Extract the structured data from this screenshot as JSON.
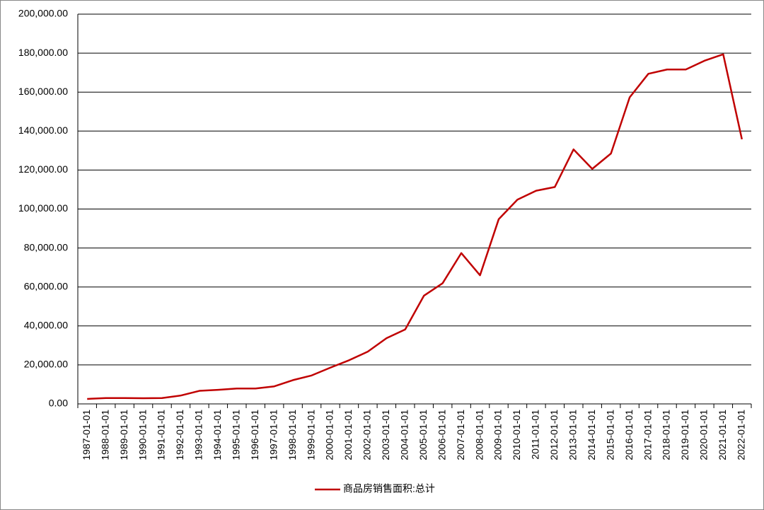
{
  "chart_data": {
    "type": "line",
    "categories": [
      "1987-01-01",
      "1988-01-01",
      "1989-01-01",
      "1990-01-01",
      "1991-01-01",
      "1992-01-01",
      "1993-01-01",
      "1994-01-01",
      "1995-01-01",
      "1996-01-01",
      "1997-01-01",
      "1998-01-01",
      "1999-01-01",
      "2000-01-01",
      "2001-01-01",
      "2002-01-01",
      "2003-01-01",
      "2004-01-01",
      "2005-01-01",
      "2006-01-01",
      "2007-01-01",
      "2008-01-01",
      "2009-01-01",
      "2010-01-01",
      "2011-01-01",
      "2012-01-01",
      "2013-01-01",
      "2014-01-01",
      "2015-01-01",
      "2016-01-01",
      "2017-01-01",
      "2018-01-01",
      "2019-01-01",
      "2020-01-01",
      "2021-01-01",
      "2022-01-01"
    ],
    "series": [
      {
        "name": "商品房销售面积:总计",
        "color": "#c00000",
        "values": [
          2545,
          3000,
          3000,
          2900,
          3000,
          4300,
          6700,
          7200,
          7900,
          7900,
          9000,
          12200,
          14600,
          18600,
          22400,
          26800,
          33700,
          38200,
          55500,
          61900,
          77400,
          66000,
          94800,
          104800,
          109400,
          111300,
          130600,
          120600,
          128500,
          157300,
          169400,
          171600,
          171600,
          176100,
          179400,
          135800
        ]
      }
    ],
    "ylim": [
      0,
      200000
    ],
    "yticks": [
      {
        "value": 0,
        "label": "0.00"
      },
      {
        "value": 20000,
        "label": "20,000.00"
      },
      {
        "value": 40000,
        "label": "40,000.00"
      },
      {
        "value": 60000,
        "label": "60,000.00"
      },
      {
        "value": 80000,
        "label": "80,000.00"
      },
      {
        "value": 100000,
        "label": "100,000.00"
      },
      {
        "value": 120000,
        "label": "120,000.00"
      },
      {
        "value": 140000,
        "label": "140,000.00"
      },
      {
        "value": 160000,
        "label": "160,000.00"
      },
      {
        "value": 180000,
        "label": "180,000.00"
      },
      {
        "value": 200000,
        "label": "200,000.00"
      }
    ],
    "grid": true,
    "legend": "bottom"
  }
}
